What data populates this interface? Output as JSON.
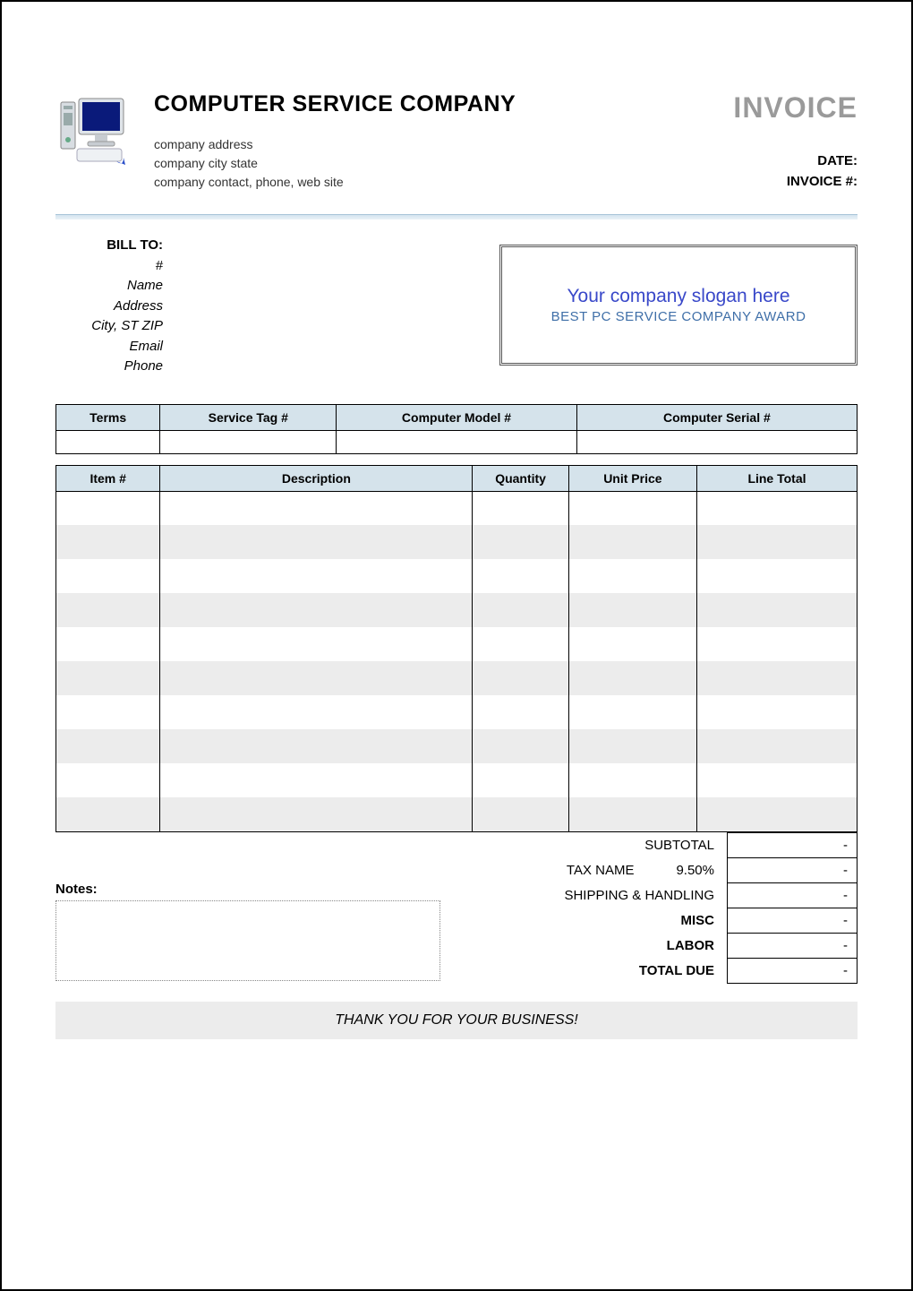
{
  "header": {
    "company_name": "COMPUTER SERVICE COMPANY",
    "address_line": "company address",
    "city_state_line": "company city state",
    "contact_line": "company contact, phone, web site",
    "invoice_title": "INVOICE",
    "date_label": "DATE:",
    "invoice_num_label": "INVOICE #:"
  },
  "bill_to": {
    "title": "BILL TO:",
    "num": "#",
    "name": "Name",
    "address": "Address",
    "city": "City, ST ZIP",
    "email": "Email",
    "phone": "Phone"
  },
  "slogan": {
    "main": "Your company slogan here",
    "sub": "BEST PC SERVICE COMPANY AWARD"
  },
  "meta_table": {
    "headers": [
      "Terms",
      "Service Tag #",
      "Computer Model #",
      "Computer Serial #"
    ],
    "col_widths": [
      "13%",
      "22%",
      "30%",
      "35%"
    ]
  },
  "items_table": {
    "headers": [
      "Item #",
      "Description",
      "Quantity",
      "Unit Price",
      "Line Total"
    ],
    "col_widths": [
      "13%",
      "39%",
      "12%",
      "16%",
      "20%"
    ],
    "row_count": 10
  },
  "totals": {
    "subtotal_label": "SUBTOTAL",
    "tax_label": "TAX NAME",
    "tax_pct": "9.50%",
    "shipping_label": "SHIPPING & HANDLING",
    "misc_label": "MISC",
    "labor_label": "LABOR",
    "total_due_label": "TOTAL DUE",
    "dash": "-"
  },
  "notes_label": "Notes:",
  "thankyou": "THANK YOU FOR YOUR BUSINESS!",
  "colors": {
    "header_bg": "#d5e3eb",
    "alt_row": "#ececec",
    "invoice_title": "#9a9a9a",
    "slogan_main": "#3948c9",
    "slogan_sub": "#3f6fa8"
  }
}
